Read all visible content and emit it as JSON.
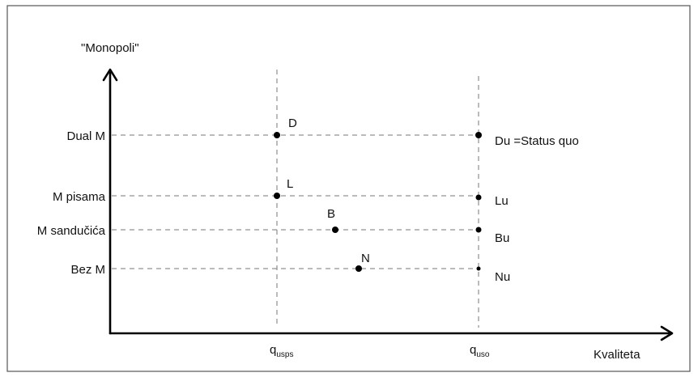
{
  "diagram": {
    "y_axis_title": "\"Monopoli\"",
    "x_axis_title": "Kvaliteta",
    "y_levels": [
      "Dual M",
      "M pisama",
      "M sandučića",
      "Bez M"
    ],
    "x_ticks": [
      {
        "main": "q",
        "sub": "usps"
      },
      {
        "main": "q",
        "sub": "uso"
      }
    ],
    "points": [
      {
        "label": "D"
      },
      {
        "label": "L"
      },
      {
        "label": "B"
      },
      {
        "label": "N"
      },
      {
        "label": "Du =Status quo"
      },
      {
        "label": "Lu"
      },
      {
        "label": "Bu"
      },
      {
        "label": "Nu"
      }
    ]
  }
}
